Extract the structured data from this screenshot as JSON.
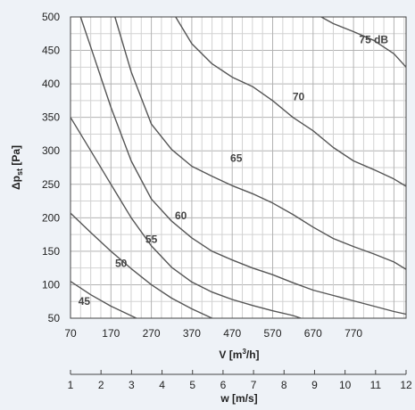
{
  "chart_data": {
    "type": "line",
    "y_label_main": "Δp",
    "y_label_sub": "st",
    "y_label_unit": " [Pa]",
    "x_label_main": "V [m",
    "x_label_sup": "3",
    "x_label_end": "/h]",
    "w_label": "w [m/s]",
    "xlim": [
      70,
      900
    ],
    "ylim": [
      50,
      500
    ],
    "x_ticks": [
      70,
      170,
      270,
      370,
      470,
      570,
      670,
      770
    ],
    "y_ticks": [
      50,
      100,
      150,
      200,
      250,
      300,
      350,
      400,
      450,
      500
    ],
    "w_ticks": [
      "1",
      "2",
      "3",
      "4",
      "5",
      "6",
      "7",
      "8",
      "9",
      "10",
      "11",
      "12"
    ],
    "grid": true,
    "series": [
      {
        "name": "45",
        "label": "45",
        "label_at": [
          104,
          75
        ],
        "x": [
          70,
          120,
          170,
          233
        ],
        "y": [
          105,
          85,
          68,
          50
        ]
      },
      {
        "name": "50",
        "label": "50",
        "label_at": [
          195,
          132
        ],
        "x": [
          70,
          120,
          170,
          220,
          270,
          320,
          370,
          420
        ],
        "y": [
          207,
          178,
          150,
          124,
          100,
          80,
          64,
          50
        ]
      },
      {
        "name": "55",
        "label": "55",
        "label_at": [
          270,
          168
        ],
        "x": [
          70,
          120,
          170,
          220,
          270,
          320,
          370,
          420,
          470,
          520,
          570,
          620,
          640
        ],
        "y": [
          350,
          300,
          250,
          200,
          158,
          126,
          104,
          89,
          78,
          69,
          61,
          54,
          50
        ]
      },
      {
        "name": "60",
        "label": "60",
        "label_at": [
          343,
          203
        ],
        "x": [
          95,
          120,
          170,
          220,
          270,
          320,
          370,
          420,
          470,
          520,
          570,
          620,
          670,
          720,
          770,
          820,
          870,
          900
        ],
        "y": [
          500,
          455,
          365,
          285,
          228,
          195,
          170,
          150,
          137,
          125,
          115,
          103,
          92,
          84,
          76,
          68,
          60,
          56
        ]
      },
      {
        "name": "65",
        "label": "65",
        "label_at": [
          480,
          289
        ],
        "x": [
          180,
          220,
          270,
          320,
          370,
          420,
          470,
          520,
          570,
          620,
          670,
          720,
          770,
          820,
          870,
          900
        ],
        "y": [
          500,
          418,
          340,
          302,
          277,
          262,
          248,
          236,
          222,
          205,
          186,
          169,
          157,
          146,
          134,
          123
        ]
      },
      {
        "name": "70",
        "label": "70",
        "label_at": [
          634,
          381
        ],
        "x": [
          330,
          370,
          420,
          470,
          520,
          570,
          620,
          670,
          720,
          770,
          820,
          870,
          900
        ],
        "y": [
          500,
          460,
          430,
          410,
          396,
          375,
          350,
          330,
          305,
          285,
          272,
          258,
          247
        ]
      },
      {
        "name": "75 dB",
        "label": "75 dB",
        "label_at": [
          820,
          466
        ],
        "x": [
          690,
          720,
          770,
          820,
          870,
          900
        ],
        "y": [
          500,
          490,
          478,
          465,
          445,
          425
        ]
      }
    ]
  }
}
